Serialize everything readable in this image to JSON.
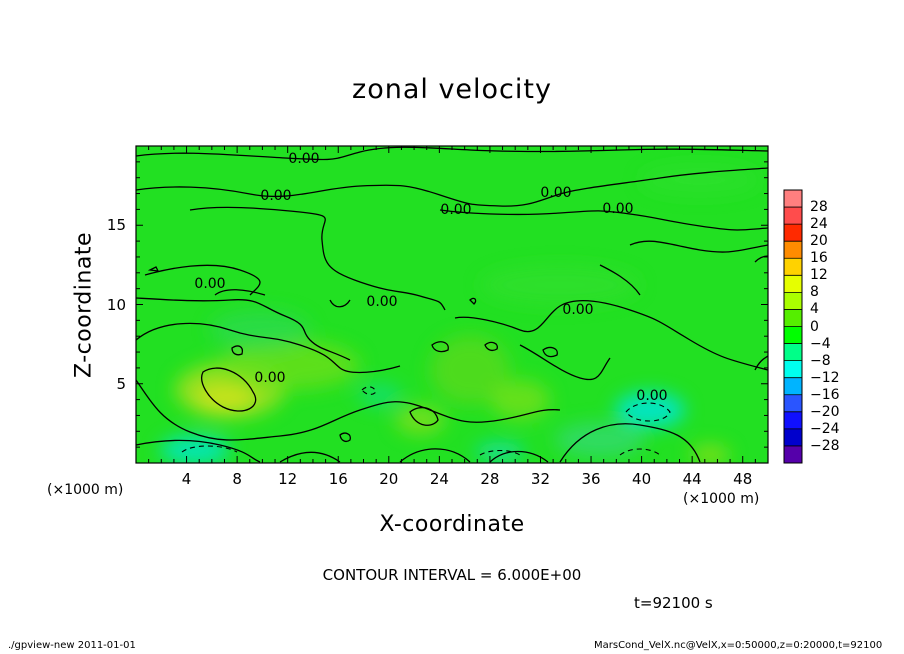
{
  "chart_data": {
    "type": "heatmap",
    "title": "zonal velocity",
    "xlabel": "X-coordinate",
    "ylabel": "Z-coordinate",
    "x_unit": "(×1000 m)",
    "x_ticks": [
      "4",
      "8",
      "12",
      "16",
      "20",
      "24",
      "28",
      "32",
      "36",
      "40",
      "44",
      "48"
    ],
    "y_ticks": [
      "5",
      "10",
      "15"
    ],
    "xlim": [
      0,
      50
    ],
    "ylim": [
      0,
      20
    ],
    "colorbar_labels": [
      "28",
      "24",
      "20",
      "16",
      "12",
      "8",
      "4",
      "0",
      "−4",
      "−8",
      "−12",
      "−16",
      "−20",
      "−24",
      "−28"
    ],
    "colorbar_colors": [
      "#ff7f7f",
      "#ff4c4c",
      "#ff2a00",
      "#ff8c00",
      "#ffd200",
      "#e6ff00",
      "#aaff00",
      "#55ee00",
      "#00ff00",
      "#00ff88",
      "#00ffee",
      "#00b4ff",
      "#2a55ff",
      "#1010ff",
      "#0000cc",
      "#5500aa"
    ],
    "contour_label": "0.00",
    "contour_interval_text": "CONTOUR INTERVAL = 6.000E+00",
    "time_text": "t=92100 s",
    "grid": false
  },
  "footer": {
    "left": "./gpview-new   2011-01-01",
    "right": "MarsCond_VelX.nc@VelX,x=0:50000,z=0:20000,t=92100"
  }
}
